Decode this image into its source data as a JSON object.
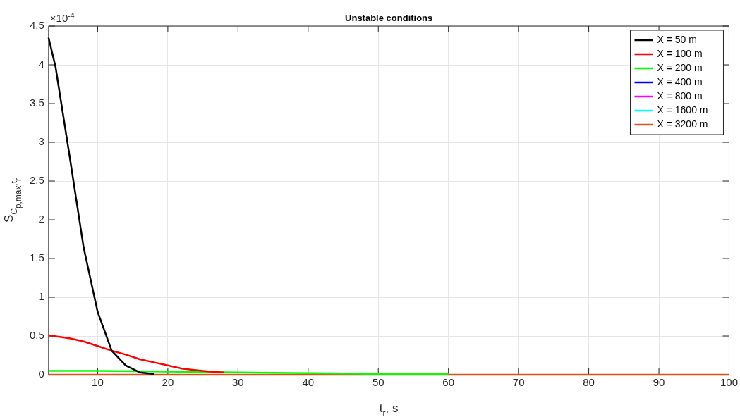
{
  "chart_data": {
    "type": "line",
    "title": "Unstable conditions",
    "xlabel": "t$_{r}$, s",
    "ylabel": "S$_{C}$$_{p,max}$$_{,t}$$_{r}$",
    "annotations": [
      "×10$^{-4}$"
    ],
    "xlim": [
      3,
      100
    ],
    "xticks": [
      10,
      20,
      30,
      40,
      50,
      60,
      70,
      80,
      90,
      100
    ],
    "ylim": [
      0,
      4.5
    ],
    "yticks": [
      0,
      0.5,
      1,
      1.5,
      2,
      2.5,
      3,
      3.5,
      4,
      4.5
    ],
    "grid": true,
    "legend": "top right",
    "marker": "none",
    "line_style": "solid",
    "series": [
      {
        "name": "X = 50 m",
        "color": "#000000",
        "x": [
          3,
          4,
          6,
          8,
          10,
          12,
          14,
          16,
          18
        ],
        "values": [
          4.35,
          3.97,
          2.82,
          1.64,
          0.81,
          0.31,
          0.12,
          0.03,
          0.01
        ]
      },
      {
        "name": "X = 100 m",
        "color": "#ff0000",
        "x": [
          3,
          6,
          8,
          10,
          12,
          14,
          16,
          18,
          20,
          22,
          24,
          26,
          28
        ],
        "values": [
          0.51,
          0.47,
          0.43,
          0.37,
          0.31,
          0.26,
          0.2,
          0.16,
          0.12,
          0.08,
          0.06,
          0.04,
          0.03
        ]
      },
      {
        "name": "X = 200 m",
        "color": "#00ff00",
        "x": [
          3,
          10,
          20,
          30,
          40,
          50,
          60
        ],
        "values": [
          0.05,
          0.05,
          0.04,
          0.03,
          0.02,
          0.01,
          0.01
        ]
      },
      {
        "name": "X = 400 m",
        "color": "#0000ff"
      },
      {
        "name": "X = 800 m",
        "color": "#ff00ff"
      },
      {
        "name": "X = 1600 m",
        "color": "#00ffff"
      },
      {
        "name": "X = 3200 m",
        "color": "#d95319",
        "x": [
          3,
          20,
          40,
          60,
          80,
          100
        ],
        "values": [
          0,
          0,
          0,
          0,
          0,
          0
        ]
      }
    ]
  }
}
